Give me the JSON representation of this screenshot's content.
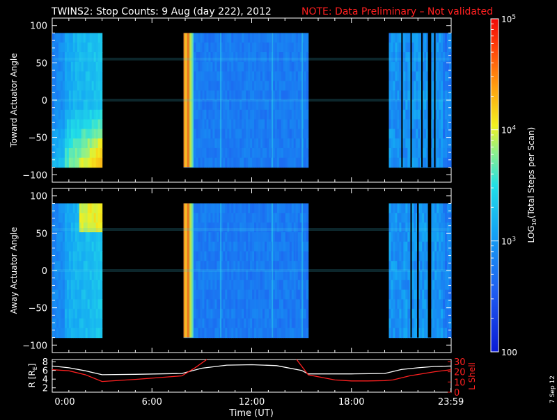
{
  "header": {
    "title": "TWINS2: Stop Counts:  9 Aug (day 222), 2012",
    "note": "NOTE: Data Preliminary – Not validated",
    "date_stamp": "7 Sep 12",
    "title_color": "#ffffff",
    "note_color": "#ff2020"
  },
  "colorbar": {
    "label_main": "LOG",
    "label_sub": "10",
    "label_rest": "(Total Steps per Scan)",
    "scale": "log",
    "range": [
      100,
      100000
    ],
    "ticks": [
      {
        "value": 100000,
        "base": "10",
        "exp": "5"
      },
      {
        "value": 10000,
        "base": "10",
        "exp": "4"
      },
      {
        "value": 1000,
        "base": "10",
        "exp": "3"
      },
      {
        "value": 100,
        "base": "100",
        "exp": ""
      }
    ]
  },
  "chart_data": [
    {
      "type": "heatmap",
      "name": "toward",
      "ylabel": "Toward Actuator Angle",
      "ylim": [
        -110,
        110
      ],
      "yticks": [
        "100",
        "50",
        "0",
        "−50",
        "−100"
      ],
      "ytick_values": [
        100,
        50,
        0,
        -50,
        -100
      ],
      "xlim_hours": [
        0,
        24
      ],
      "data_extent_deg": [
        -90,
        90
      ],
      "coverage_hours": [
        [
          0.0,
          3.0
        ],
        [
          7.9,
          15.4
        ],
        [
          20.25,
          24.0
        ]
      ],
      "gaps_hours": [
        [
          21.0,
          21.08
        ],
        [
          21.55,
          21.62
        ],
        [
          22.2,
          22.25
        ],
        [
          22.6,
          22.8
        ],
        [
          22.97,
          23.06
        ]
      ],
      "high_count_band_hours": [
        7.9,
        8.5
      ]
    },
    {
      "type": "heatmap",
      "name": "away",
      "ylabel": "Away Actuator Angle",
      "ylim": [
        -110,
        110
      ],
      "yticks": [
        "100",
        "50",
        "0",
        "−50",
        "−100"
      ],
      "ytick_values": [
        100,
        50,
        0,
        -50,
        -100
      ],
      "xlim_hours": [
        0,
        24
      ],
      "data_extent_deg": [
        -90,
        90
      ],
      "coverage_hours": [
        [
          0.0,
          3.0
        ],
        [
          7.9,
          15.4
        ],
        [
          20.25,
          24.0
        ]
      ],
      "gaps_hours": [
        [
          21.55,
          21.62
        ],
        [
          21.95,
          22.05
        ],
        [
          22.6,
          22.8
        ]
      ],
      "high_count_band_hours": [
        7.9,
        8.5
      ]
    },
    {
      "type": "line",
      "name": "orbit",
      "xlabel": "Time (UT)",
      "x_ticks": [
        "0:00",
        "6:00",
        "12:00",
        "18:00",
        "23:59"
      ],
      "x_tick_hours": [
        0,
        6,
        12,
        18,
        23.983
      ],
      "xlim_hours": [
        0,
        24
      ],
      "left_axis": {
        "label_main": "R [R",
        "label_sub": "E",
        "label_end": "]",
        "ticks": [
          "8",
          "6",
          "4",
          "2"
        ],
        "tick_values": [
          8,
          6,
          4,
          2
        ],
        "range": [
          1,
          8.5
        ],
        "color": "#ffffff"
      },
      "right_axis": {
        "label": "L Shell",
        "ticks": [
          "30",
          "20",
          "10",
          "0"
        ],
        "tick_values": [
          30,
          20,
          10,
          0
        ],
        "range": [
          0,
          32
        ],
        "color": "#ff2020"
      },
      "series": [
        {
          "axis": "left",
          "color": "#ffffff",
          "x": [
            0,
            1,
            2,
            3,
            5,
            7.8,
            9,
            10.5,
            12,
            13.5,
            15,
            15.4,
            18,
            20,
            21,
            22,
            23,
            24
          ],
          "y": [
            7.0,
            6.6,
            5.9,
            5.0,
            5.1,
            5.3,
            6.5,
            7.2,
            7.3,
            7.1,
            6.0,
            5.2,
            5.2,
            5.3,
            6.2,
            6.6,
            6.9,
            7.0
          ]
        },
        {
          "axis": "right",
          "color": "#ff2020",
          "x": [
            0,
            1,
            2,
            3,
            5,
            7.8,
            8.6,
            9.3
          ],
          "y": [
            22,
            21,
            17,
            10.5,
            12.5,
            16,
            24,
            33
          ]
        },
        {
          "axis": "right",
          "color": "#ff2020",
          "x": [
            14.7,
            15.4,
            17,
            18,
            19,
            20,
            20.5,
            21.5,
            23,
            24
          ],
          "y": [
            32,
            17,
            12,
            11,
            11,
            11.3,
            12,
            16,
            20,
            22
          ]
        }
      ]
    }
  ]
}
